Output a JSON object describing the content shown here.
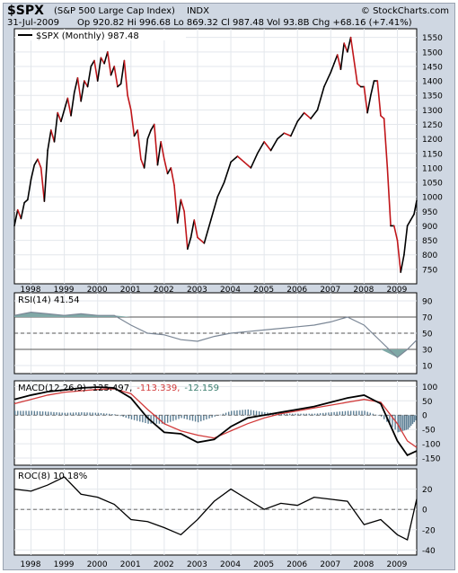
{
  "header": {
    "symbol": "$SPX",
    "name": "(S&P 500 Large Cap Index)",
    "exchange": "INDX",
    "copyright": "© StockCharts.com",
    "date": "31-Jul-2009",
    "quote": "Op 920.82  Hi 996.68  Lo 869.32  Cl 987.48  Vol 93.8B  Chg +68.16 (+7.41%)"
  },
  "chart_data": [
    {
      "type": "line",
      "legend": "$SPX (Monthly) 987.48",
      "x_tick_labels": [
        "1998",
        "1999",
        "2000",
        "2001",
        "2002",
        "2003",
        "2004",
        "2005",
        "2006",
        "2007",
        "2008",
        "2009"
      ],
      "y_tick_labels": [
        "750",
        "800",
        "850",
        "900",
        "950",
        "1000",
        "1050",
        "1100",
        "1150",
        "1200",
        "1250",
        "1300",
        "1350",
        "1400",
        "1450",
        "1500",
        "1550"
      ],
      "ylim": [
        700,
        1580
      ],
      "x": [
        1997.5,
        1997.6,
        1997.7,
        1997.8,
        1997.9,
        1998.0,
        1998.1,
        1998.2,
        1998.3,
        1998.4,
        1998.5,
        1998.6,
        1998.7,
        1998.8,
        1998.9,
        1999.0,
        1999.1,
        1999.2,
        1999.3,
        1999.4,
        1999.5,
        1999.6,
        1999.7,
        1999.8,
        1999.9,
        2000.0,
        2000.1,
        2000.2,
        2000.3,
        2000.4,
        2000.5,
        2000.6,
        2000.7,
        2000.8,
        2000.9,
        2001.0,
        2001.1,
        2001.2,
        2001.3,
        2001.4,
        2001.5,
        2001.6,
        2001.7,
        2001.8,
        2001.9,
        2002.0,
        2002.1,
        2002.2,
        2002.3,
        2002.4,
        2002.5,
        2002.6,
        2002.7,
        2002.8,
        2002.9,
        2003.0,
        2003.2,
        2003.4,
        2003.6,
        2003.8,
        2004.0,
        2004.2,
        2004.4,
        2004.6,
        2004.8,
        2005.0,
        2005.2,
        2005.4,
        2005.6,
        2005.8,
        2006.0,
        2006.2,
        2006.4,
        2006.6,
        2006.8,
        2007.0,
        2007.1,
        2007.2,
        2007.3,
        2007.4,
        2007.5,
        2007.6,
        2007.7,
        2007.8,
        2007.9,
        2008.0,
        2008.1,
        2008.2,
        2008.3,
        2008.4,
        2008.5,
        2008.6,
        2008.7,
        2008.8,
        2008.9,
        2009.0,
        2009.1,
        2009.2,
        2009.3,
        2009.4,
        2009.5,
        2009.58
      ],
      "y": [
        900,
        955,
        925,
        980,
        990,
        1060,
        1110,
        1130,
        1100,
        985,
        1160,
        1230,
        1190,
        1290,
        1260,
        1300,
        1340,
        1280,
        1360,
        1410,
        1330,
        1400,
        1380,
        1450,
        1470,
        1400,
        1480,
        1460,
        1500,
        1420,
        1450,
        1380,
        1390,
        1470,
        1350,
        1300,
        1210,
        1230,
        1130,
        1100,
        1200,
        1230,
        1250,
        1110,
        1190,
        1130,
        1080,
        1100,
        1040,
        910,
        990,
        950,
        820,
        860,
        920,
        860,
        840,
        920,
        1000,
        1050,
        1120,
        1140,
        1120,
        1100,
        1150,
        1190,
        1160,
        1200,
        1220,
        1210,
        1260,
        1290,
        1270,
        1300,
        1380,
        1430,
        1460,
        1490,
        1440,
        1530,
        1500,
        1550,
        1470,
        1390,
        1380,
        1380,
        1290,
        1350,
        1400,
        1400,
        1280,
        1270,
        1100,
        900,
        900,
        850,
        740,
        800,
        900,
        920,
        940,
        987
      ]
    },
    {
      "type": "line",
      "legend": "RSI(14) 41.54",
      "y_tick_labels": [
        "10",
        "30",
        "50",
        "70",
        "90"
      ],
      "ylim": [
        0,
        100
      ],
      "levels": [
        30,
        50,
        70
      ],
      "x": [
        1997.5,
        1998.0,
        1998.5,
        1999.0,
        1999.5,
        2000.0,
        2000.5,
        2001.0,
        2001.5,
        2002.0,
        2002.5,
        2003.0,
        2003.5,
        2004.0,
        2004.5,
        2005.0,
        2005.5,
        2006.0,
        2006.5,
        2007.0,
        2007.5,
        2008.0,
        2008.5,
        2009.0,
        2009.3,
        2009.58
      ],
      "values": [
        72,
        76,
        74,
        72,
        74,
        72,
        72,
        60,
        50,
        48,
        42,
        40,
        46,
        50,
        52,
        54,
        56,
        58,
        60,
        64,
        70,
        60,
        40,
        20,
        30,
        41.54
      ]
    },
    {
      "type": "line",
      "legend": [
        "MACD(12,26,9) -125.497",
        "-113.339",
        "-12.159"
      ],
      "y_tick_labels": [
        "100",
        "50",
        "0",
        "-50",
        "-100",
        "-150"
      ],
      "ylim": [
        -175,
        120
      ],
      "x": [
        1997.5,
        1998.0,
        1998.5,
        1999.0,
        1999.5,
        2000.0,
        2000.5,
        2001.0,
        2001.5,
        2002.0,
        2002.5,
        2003.0,
        2003.5,
        2004.0,
        2004.5,
        2005.0,
        2005.5,
        2006.0,
        2006.5,
        2007.0,
        2007.5,
        2008.0,
        2008.5,
        2009.0,
        2009.3,
        2009.58
      ],
      "series": [
        {
          "name": "MACD(12,26,9)",
          "values": [
            55,
            70,
            82,
            88,
            95,
            98,
            95,
            60,
            -10,
            -60,
            -65,
            -95,
            -85,
            -40,
            -10,
            0,
            10,
            20,
            30,
            45,
            60,
            70,
            40,
            -90,
            -140,
            -125
          ]
        },
        {
          "name": "Signal",
          "values": [
            40,
            55,
            70,
            80,
            85,
            90,
            92,
            75,
            20,
            -30,
            -55,
            -70,
            -80,
            -55,
            -30,
            -10,
            5,
            15,
            25,
            35,
            45,
            55,
            45,
            -30,
            -90,
            -113
          ]
        },
        {
          "name": "Histogram",
          "values": [
            15,
            15,
            12,
            8,
            10,
            8,
            3,
            -15,
            -30,
            -30,
            -10,
            -25,
            -5,
            15,
            20,
            10,
            5,
            5,
            5,
            10,
            15,
            15,
            -5,
            -60,
            -50,
            -12
          ]
        }
      ]
    },
    {
      "type": "line",
      "legend": "ROC(8) 10.18%",
      "y_tick_labels": [
        "20",
        "0",
        "-20",
        "-40"
      ],
      "ylim": [
        -45,
        40
      ],
      "x": [
        1997.5,
        1998.0,
        1998.5,
        1999.0,
        1999.5,
        2000.0,
        2000.5,
        2001.0,
        2001.5,
        2002.0,
        2002.5,
        2003.0,
        2003.5,
        2004.0,
        2004.5,
        2005.0,
        2005.5,
        2006.0,
        2006.5,
        2007.0,
        2007.5,
        2008.0,
        2008.5,
        2009.0,
        2009.3,
        2009.58
      ],
      "values": [
        20,
        18,
        24,
        32,
        15,
        12,
        5,
        -10,
        -12,
        -18,
        -25,
        -10,
        8,
        20,
        10,
        0,
        6,
        4,
        12,
        10,
        8,
        -15,
        -10,
        -25,
        -30,
        10.18
      ]
    }
  ],
  "colors": {
    "price_up": "#000000",
    "price_down": "#c0161a",
    "rsi_line": "#7b8796",
    "rsi_fill": "#7fa8a6",
    "macd_line": "#000000",
    "signal_line": "#d23a3a",
    "hist": "#5d7f95",
    "roc_line": "#000000",
    "panel_bg": "#ffffff",
    "frame_bg": "#cfd7e2"
  }
}
